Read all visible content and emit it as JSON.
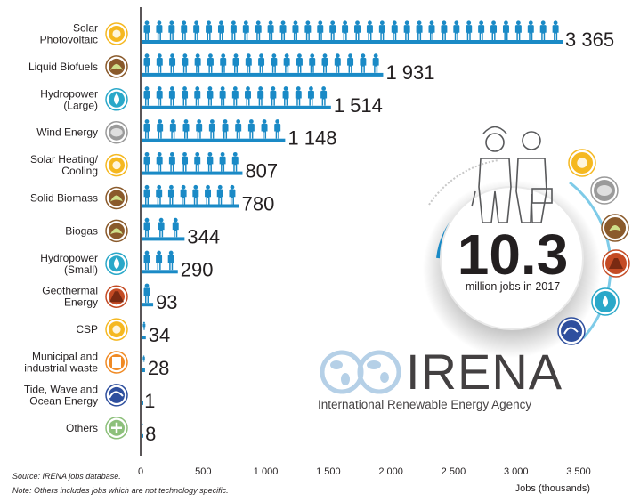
{
  "chart_data": {
    "type": "bar",
    "orientation": "horizontal",
    "categories": [
      "Solar\nPhotovoltaic",
      "Liquid Biofuels",
      "Hydropower\n(Large)",
      "Wind Energy",
      "Solar Heating/\nCooling",
      "Solid Biomass",
      "Biogas",
      "Hydropower\n(Small)",
      "Geothermal\nEnergy",
      "CSP",
      "Municipal and\nindustrial waste",
      "Tide, Wave and\nOcean Energy",
      "Others"
    ],
    "values": [
      3365,
      1931,
      1514,
      1148,
      807,
      780,
      344,
      290,
      93,
      34,
      28,
      1,
      8
    ],
    "value_labels": [
      "3 365",
      "1 931",
      "1 514",
      "1 148",
      "807",
      "780",
      "344",
      "290",
      "93",
      "34",
      "28",
      "1",
      "8"
    ],
    "icons": [
      "sun-icon",
      "leaf-icon",
      "water-drop-icon",
      "wind-turbine-icon",
      "sun-icon",
      "leaf-icon",
      "leaf-icon",
      "water-drop-icon",
      "volcano-icon",
      "sun-icon",
      "waste-bin-icon",
      "wave-icon",
      "plus-icon"
    ],
    "icon_colors": [
      "#f5b820",
      "#8a5a2b",
      "#2aa8c9",
      "#9a9a9a",
      "#f5b820",
      "#8a5a2b",
      "#8a5a2b",
      "#2aa8c9",
      "#c44b24",
      "#f5b820",
      "#f08a24",
      "#2e4f9e",
      "#8dc07b"
    ],
    "xlim": [
      0,
      3500
    ],
    "xticks": [
      0,
      500,
      1000,
      1500,
      2000,
      2500,
      3000,
      3500
    ],
    "xtick_labels": [
      "0",
      "500",
      "1 000",
      "1 500",
      "2 000",
      "2 500",
      "3 000",
      "3 500"
    ],
    "xlabel": "Jobs (thousands)",
    "ylabel": "",
    "grid": false,
    "bar_color": "#1a8ac6",
    "people_color": "#1a8ac6"
  },
  "badge": {
    "big_number": "10.3",
    "subtitle": "million jobs in 2017",
    "number_color": "#1a8ac6",
    "ring_icons": [
      "sun-icon",
      "wind-turbine-icon",
      "leaf-icon",
      "volcano-icon",
      "water-drop-icon",
      "wave-icon"
    ]
  },
  "watermark": {
    "name": "IRENA",
    "full_name": "International Renewable Energy Agency",
    "color": "#a9c8e3"
  },
  "footnotes": {
    "source": "Source: IRENA jobs database.",
    "note": "Note: Others includes jobs which are not technology specific."
  }
}
